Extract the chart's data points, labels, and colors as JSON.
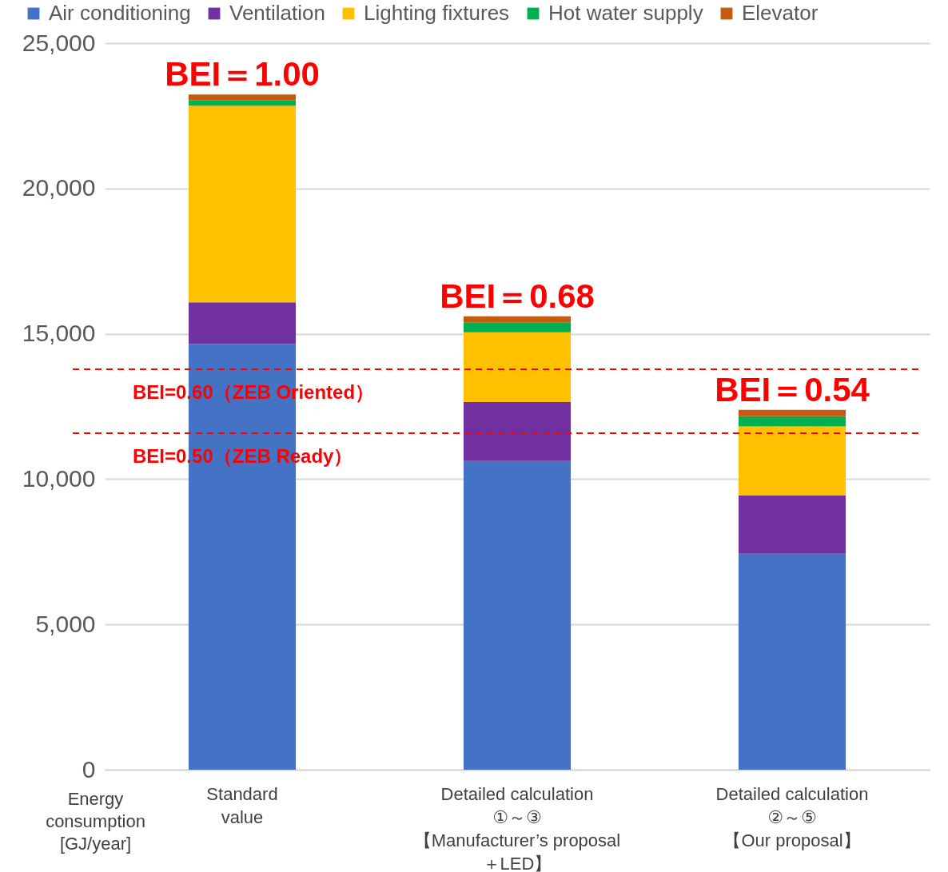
{
  "chart_data": {
    "type": "bar",
    "stacked": true,
    "categories": [
      "Standard\nvalue",
      "Detailed calculation\n①～③\n【Manufacturer’s proposal\n＋LED】",
      "Detailed calculation\n②～⑤\n【Our proposal】"
    ],
    "ylabel": "Energy\nconsumption\n[GJ/year]",
    "series": [
      {
        "name": "Air conditioning",
        "color": "#4472c4",
        "values": [
          14650,
          10620,
          7430
        ]
      },
      {
        "name": "Ventilation",
        "color": "#7030a0",
        "values": [
          1430,
          2040,
          2010
        ]
      },
      {
        "name": "Lighting fixtures",
        "color": "#ffc000",
        "values": [
          6770,
          2390,
          2370
        ]
      },
      {
        "name": "Hot water supply",
        "color": "#00b050",
        "values": [
          190,
          330,
          350
        ]
      },
      {
        "name": "Elevator",
        "color": "#c55a11",
        "values": [
          190,
          220,
          220
        ]
      }
    ],
    "ylim": [
      0,
      25000
    ],
    "yticks": [
      {
        "value": 0,
        "label": "0"
      },
      {
        "value": 5000,
        "label": "5,000"
      },
      {
        "value": 10000,
        "label": "10,000"
      },
      {
        "value": 15000,
        "label": "15,000"
      },
      {
        "value": 20000,
        "label": "20,000"
      },
      {
        "value": 25000,
        "label": "25,000"
      }
    ],
    "grid": "y",
    "legend": "top",
    "ref_lines": [
      {
        "axis": "y",
        "value": 13780,
        "color": "#ff0000",
        "line_style": "dashed"
      },
      {
        "axis": "y",
        "value": 11580,
        "color": "#ff0000",
        "line_style": "dashed"
      }
    ],
    "annotations": [
      "BEI=0.60（ZEB Oriented）",
      "BEI=0.50（ZEB Ready）",
      {
        "text": "BEI＝1.00",
        "x": "Standard\nvalue",
        "y": 23230
      },
      {
        "text": "BEI＝0.68",
        "x": "Detailed calculation\n①～③\n【Manufacturer’s proposal\n＋LED】",
        "y": 15595
      },
      {
        "text": "BEI＝0.54",
        "x": "Detailed calculation\n②～⑤\n【Our proposal】",
        "y": 12380
      }
    ]
  }
}
